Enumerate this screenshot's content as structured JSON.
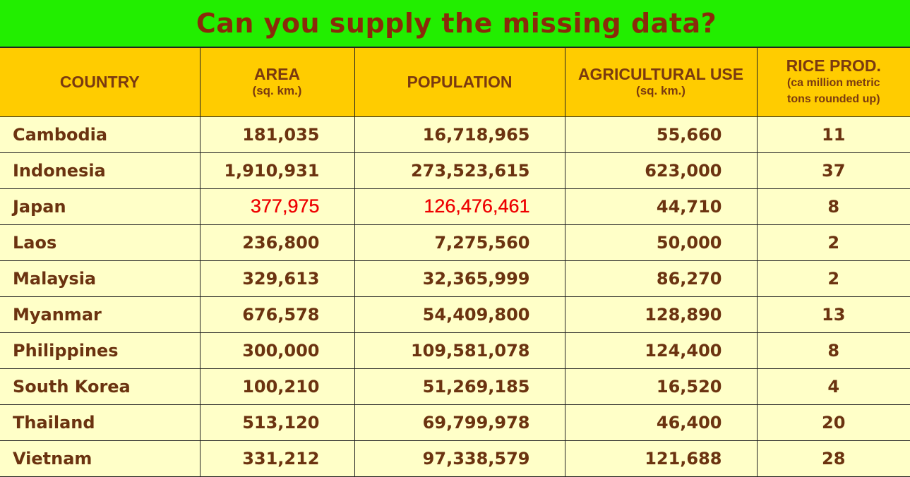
{
  "title": "Can you supply the missing data?",
  "colors": {
    "title_bg": "#22ee00",
    "title_text": "#8a2a0a",
    "header_bg": "#ffcc00",
    "header_text": "#7a3a10",
    "body_bg": "#ffffc8",
    "body_text": "#6b3310",
    "highlight_text": "#ee0000"
  },
  "headers": {
    "country": "COUNTRY",
    "area": "AREA",
    "area_unit": "(sq. km.)",
    "population": "POPULATION",
    "agri": "AGRICULTURAL USE",
    "agri_unit": "(sq. km.)",
    "rice": "RICE PROD.",
    "rice_note_1": "(ca million metric",
    "rice_note_2": "tons rounded up)"
  },
  "rows": [
    {
      "country": "Cambodia",
      "area": "181,035",
      "population": "16,718,965",
      "agri": "55,660",
      "rice": "11"
    },
    {
      "country": "Indonesia",
      "area": "1,910,931",
      "population": "273,523,615",
      "agri": "623,000",
      "rice": "37"
    },
    {
      "country": "Japan",
      "area": "377,975",
      "population": "126,476,461",
      "agri": "44,710",
      "rice": "8"
    },
    {
      "country": "Laos",
      "area": "236,800",
      "population": "7,275,560",
      "agri": "50,000",
      "rice": "2"
    },
    {
      "country": "Malaysia",
      "area": "329,613",
      "population": "32,365,999",
      "agri": "86,270",
      "rice": "2"
    },
    {
      "country": "Myanmar",
      "area": "676,578",
      "population": "54,409,800",
      "agri": "128,890",
      "rice": "13"
    },
    {
      "country": "Philippines",
      "area": "300,000",
      "population": "109,581,078",
      "agri": "124,400",
      "rice": "8"
    },
    {
      "country": "South Korea",
      "area": "100,210",
      "population": "51,269,185",
      "agri": "16,520",
      "rice": "4"
    },
    {
      "country": "Thailand",
      "area": "513,120",
      "population": "69,799,978",
      "agri": "46,400",
      "rice": "20"
    },
    {
      "country": "Vietnam",
      "area": "331,212",
      "population": "97,338,579",
      "agri": "121,688",
      "rice": "28"
    }
  ]
}
